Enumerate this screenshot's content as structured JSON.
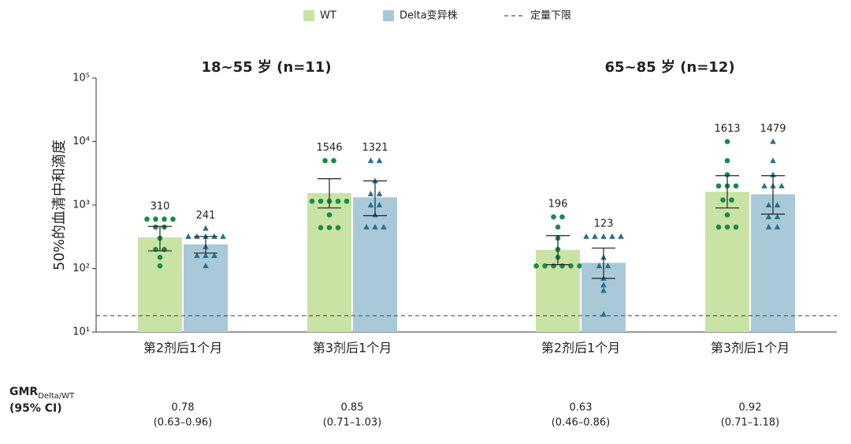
{
  "chart_data": {
    "type": "bar",
    "y_label": "50%的血清中和滴度",
    "log_scale": true,
    "ylim": [
      10,
      100000
    ],
    "yticks": [
      {
        "value": 10,
        "label": "10¹"
      },
      {
        "value": 100,
        "label": "10²"
      },
      {
        "value": 1000,
        "label": "10³"
      },
      {
        "value": 10000,
        "label": "10⁴"
      },
      {
        "value": 100000,
        "label": "10⁵"
      }
    ],
    "legend": "top",
    "reference_line": {
      "name": "定量下限",
      "value": 18,
      "color": "#555555"
    },
    "gmr_label": "GMR",
    "gmr_label_sub": "Delta/WT",
    "gmr_label_ci": "(95% CI)",
    "panels": [
      {
        "title": "18~55 岁 (n=11)",
        "categories": [
          "第2剂后1个月",
          "第3剂后1个月"
        ],
        "series": [
          {
            "name": "WT",
            "color": "#c9e3a4",
            "marker": "circle",
            "marker_color": "#1a8a4a",
            "values": [
              310,
              1546
            ],
            "errors": [
              [
                190,
                460
              ],
              [
                900,
                2600
              ]
            ],
            "points": [
              [
                600,
                600,
                600,
                600,
                450,
                450,
                300,
                200,
                200,
                150,
                110
              ],
              [
                5000,
                5000,
                1150,
                1150,
                1150,
                1150,
                1150,
                700,
                440,
                440,
                440
              ]
            ]
          },
          {
            "name": "Delta变异株",
            "color": "#a9c9d8",
            "marker": "triangle",
            "marker_color": "#2a6f8f",
            "values": [
              241,
              1321
            ],
            "errors": [
              [
                175,
                320
              ],
              [
                680,
                2400
              ]
            ],
            "points": [
              [
                430,
                320,
                320,
                320,
                320,
                320,
                220,
                160,
                160,
                160,
                110
              ],
              [
                5000,
                5000,
                2400,
                1500,
                1500,
                1000,
                1000,
                700,
                450,
                450,
                450
              ]
            ]
          }
        ],
        "gmr": [
          0.78,
          0.85
        ],
        "gmr_ci": [
          "(0.63–0.96)",
          "(0.71–1.03)"
        ]
      },
      {
        "title": "65~85 岁 (n=12)",
        "categories": [
          "第2剂后1个月",
          "第3剂后1个月"
        ],
        "series": [
          {
            "name": "WT",
            "color": "#c9e3a4",
            "marker": "circle",
            "marker_color": "#1a8a4a",
            "values": [
              196,
              1613
            ],
            "errors": [
              [
                115,
                330
              ],
              [
                900,
                2900
              ]
            ],
            "points": [
              [
                650,
                650,
                450,
                300,
                200,
                150,
                110,
                110,
                110,
                110,
                110,
                110
              ],
              [
                10000,
                5000,
                3000,
                2000,
                2000,
                2000,
                1200,
                1200,
                700,
                450,
                450,
                450
              ]
            ]
          },
          {
            "name": "Delta变异株",
            "color": "#a9c9d8",
            "marker": "triangle",
            "marker_color": "#2a6f8f",
            "values": [
              123,
              1479
            ],
            "errors": [
              [
                70,
                210
              ],
              [
                720,
                2900
              ]
            ],
            "points": [
              [
                320,
                320,
                320,
                320,
                320,
                150,
                110,
                110,
                70,
                55,
                45,
                19
              ],
              [
                10000,
                5000,
                3000,
                2000,
                2000,
                2000,
                1000,
                1000,
                650,
                650,
                450,
                450
              ]
            ]
          }
        ],
        "gmr": [
          0.63,
          0.92
        ],
        "gmr_ci": [
          "(0.46–0.86)",
          "(0.71–1.18)"
        ]
      }
    ]
  }
}
